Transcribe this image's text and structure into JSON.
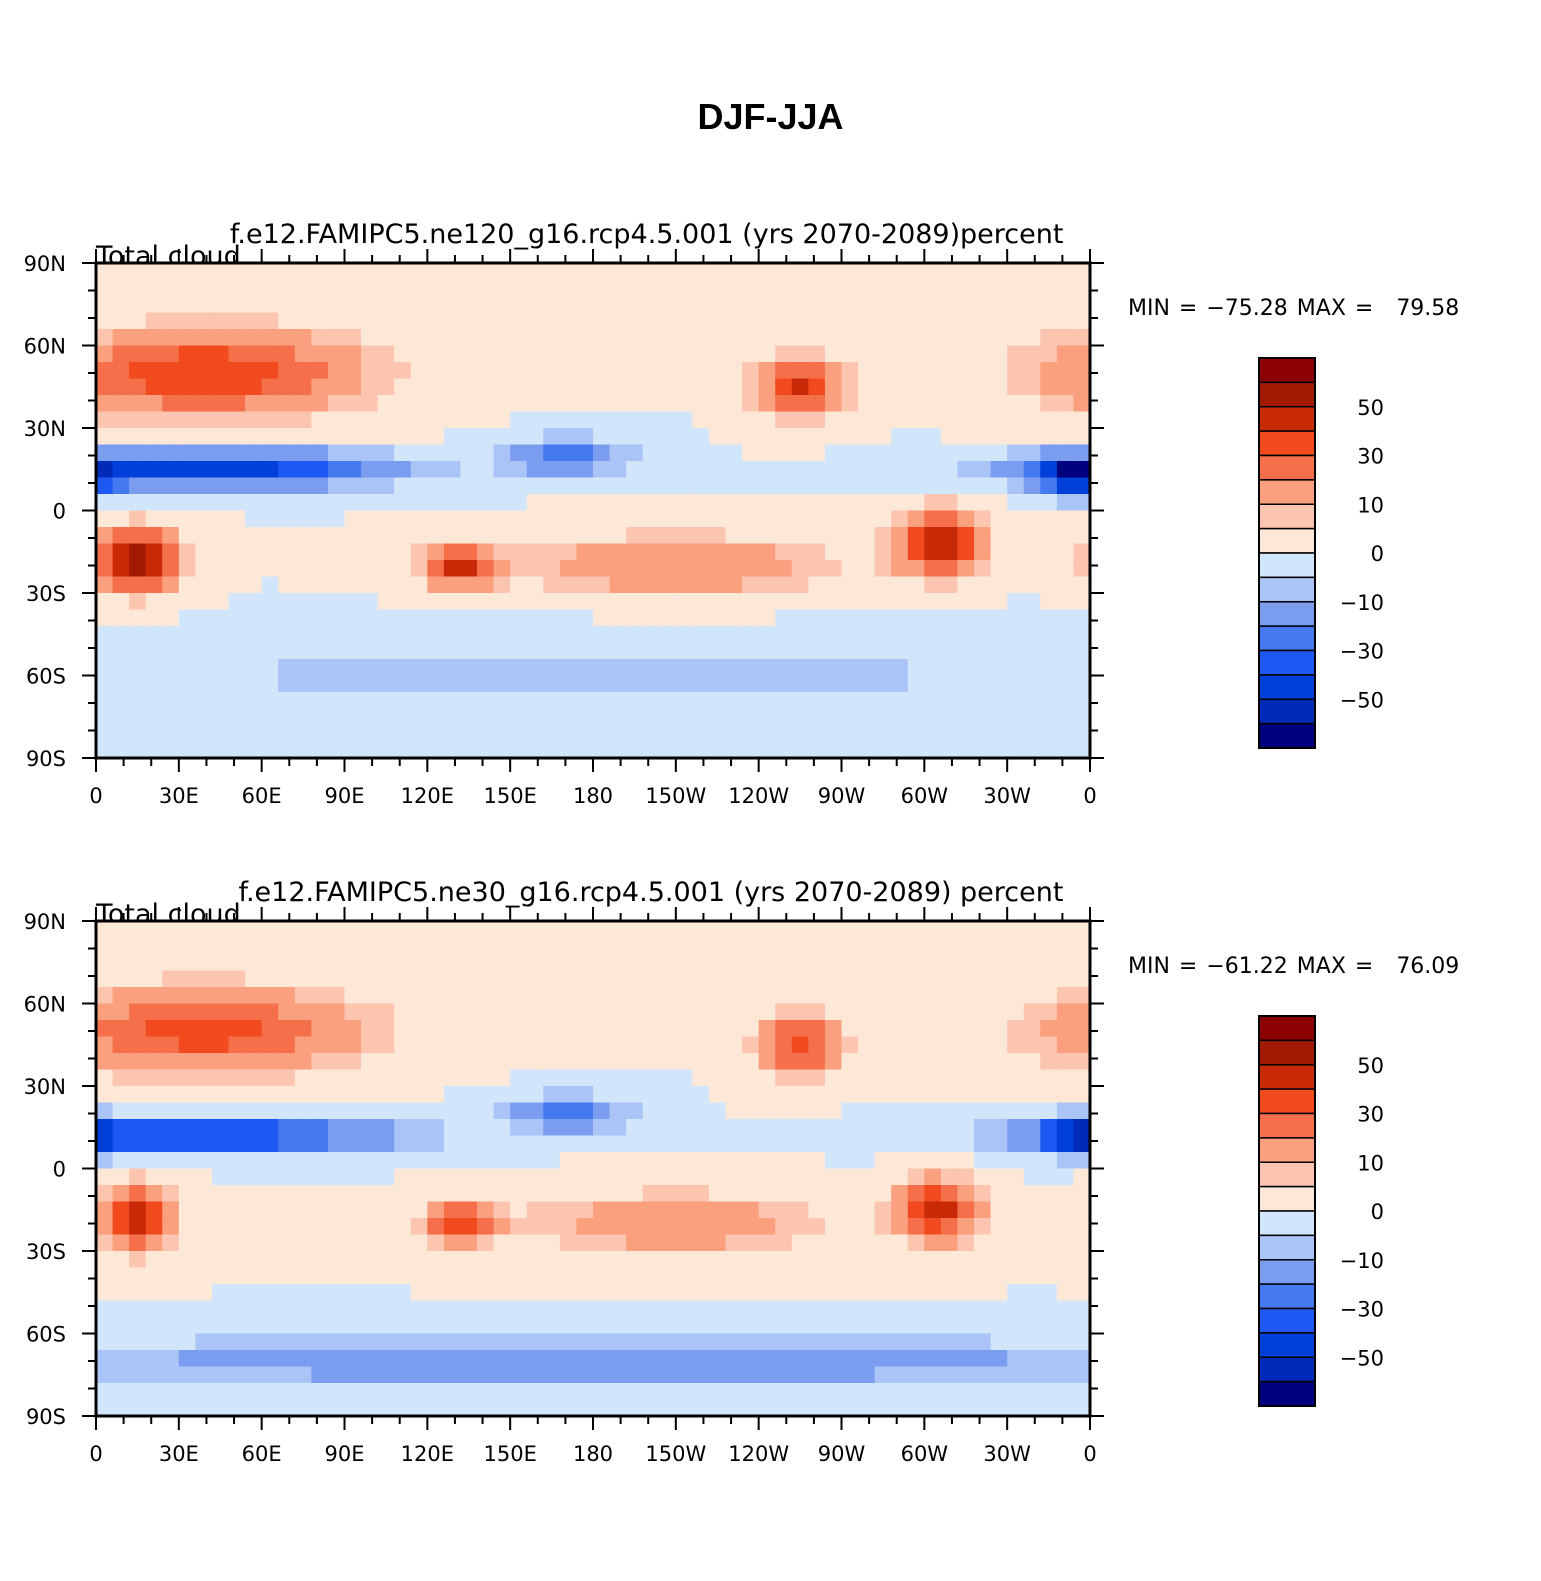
{
  "title": "DJF-JJA",
  "chart_data": [
    {
      "type": "heatmap",
      "left_label": "Total cloud",
      "center_label": "f.e12.FAMIPC5.ne120_g16.rcp4.5.001 (yrs 2070-2089)",
      "right_label": "percent",
      "min_label": "MIN =",
      "min_value": "−75.28",
      "max_label": "MAX =",
      "max_value": "79.58",
      "xticks": [
        "0",
        "30E",
        "60E",
        "90E",
        "120E",
        "150E",
        "180",
        "150W",
        "120W",
        "90W",
        "60W",
        "30W",
        "0"
      ],
      "yticks": [
        "90N",
        "60N",
        "30N",
        "0",
        "30S",
        "60S",
        "90S"
      ],
      "xlim": [
        0,
        360
      ],
      "ylim": [
        -90,
        90
      ],
      "colorbar_labels": [
        "50",
        "30",
        "10",
        "0",
        "−10",
        "−30",
        "−50"
      ],
      "levels": [
        -60,
        -50,
        -40,
        -30,
        -20,
        -10,
        -5,
        0,
        5,
        10,
        20,
        30,
        40,
        50,
        60
      ],
      "regions": [
        {
          "lon": 40,
          "lat": 50,
          "v": 40,
          "w": 50,
          "h": 14
        },
        {
          "lon": 15,
          "lat": -18,
          "v": 55,
          "w": 14,
          "h": 10
        },
        {
          "lon": 305,
          "lat": -12,
          "v": 55,
          "w": 14,
          "h": 10
        },
        {
          "lon": 132,
          "lat": -20,
          "v": 45,
          "w": 12,
          "h": 7
        },
        {
          "lon": 255,
          "lat": 45,
          "v": 40,
          "w": 14,
          "h": 10
        },
        {
          "lon": 40,
          "lat": 15,
          "v": -50,
          "w": 60,
          "h": 6
        },
        {
          "lon": 355,
          "lat": 12,
          "v": -50,
          "w": 12,
          "h": 6
        },
        {
          "lon": 170,
          "lat": 20,
          "v": -25,
          "w": 20,
          "h": 6
        },
        {
          "lon": 210,
          "lat": -20,
          "v": 20,
          "w": 50,
          "h": 10
        },
        {
          "lon": 180,
          "lat": -60,
          "v": -8,
          "w": 180,
          "h": 12
        }
      ]
    },
    {
      "type": "heatmap",
      "left_label": "Total cloud",
      "center_label": "f.e12.FAMIPC5.ne30_g16.rcp4.5.001 (yrs 2070-2089)",
      "right_label": "percent",
      "min_label": "MIN =",
      "min_value": "−61.22",
      "max_label": "MAX =",
      "max_value": "76.09",
      "xticks": [
        "0",
        "30E",
        "60E",
        "90E",
        "120E",
        "150E",
        "180",
        "150W",
        "120W",
        "90W",
        "60W",
        "30W",
        "0"
      ],
      "yticks": [
        "90N",
        "60N",
        "30N",
        "0",
        "30S",
        "60S",
        "90S"
      ],
      "xlim": [
        0,
        360
      ],
      "ylim": [
        -90,
        90
      ],
      "colorbar_labels": [
        "50",
        "30",
        "10",
        "0",
        "−10",
        "−30",
        "−50"
      ],
      "levels": [
        -60,
        -50,
        -40,
        -30,
        -20,
        -10,
        -5,
        0,
        5,
        10,
        20,
        30,
        40,
        50,
        60
      ],
      "regions": [
        {
          "lon": 40,
          "lat": 50,
          "v": 35,
          "w": 50,
          "h": 14
        },
        {
          "lon": 15,
          "lat": -18,
          "v": 50,
          "w": 12,
          "h": 10
        },
        {
          "lon": 305,
          "lat": -15,
          "v": 45,
          "w": 14,
          "h": 10
        },
        {
          "lon": 132,
          "lat": -20,
          "v": 35,
          "w": 12,
          "h": 7
        },
        {
          "lon": 255,
          "lat": 45,
          "v": 35,
          "w": 14,
          "h": 10
        },
        {
          "lon": 40,
          "lat": 12,
          "v": -45,
          "w": 60,
          "h": 6
        },
        {
          "lon": 355,
          "lat": 12,
          "v": -40,
          "w": 12,
          "h": 6
        },
        {
          "lon": 170,
          "lat": 20,
          "v": -25,
          "w": 20,
          "h": 6
        },
        {
          "lon": 210,
          "lat": -20,
          "v": 18,
          "w": 50,
          "h": 10
        },
        {
          "lon": 180,
          "lat": -70,
          "v": -20,
          "w": 180,
          "h": 8
        }
      ]
    }
  ],
  "colors": {
    "palette": [
      "#00007f",
      "#002ab7",
      "#0040d8",
      "#1e58f2",
      "#4479ef",
      "#7a9df0",
      "#aac4f8",
      "#d2e6fb",
      "#fde8d8",
      "#fcc5b0",
      "#faa07f",
      "#f5704a",
      "#f04a1e",
      "#c82a08",
      "#a31a04",
      "#8b0000"
    ]
  }
}
